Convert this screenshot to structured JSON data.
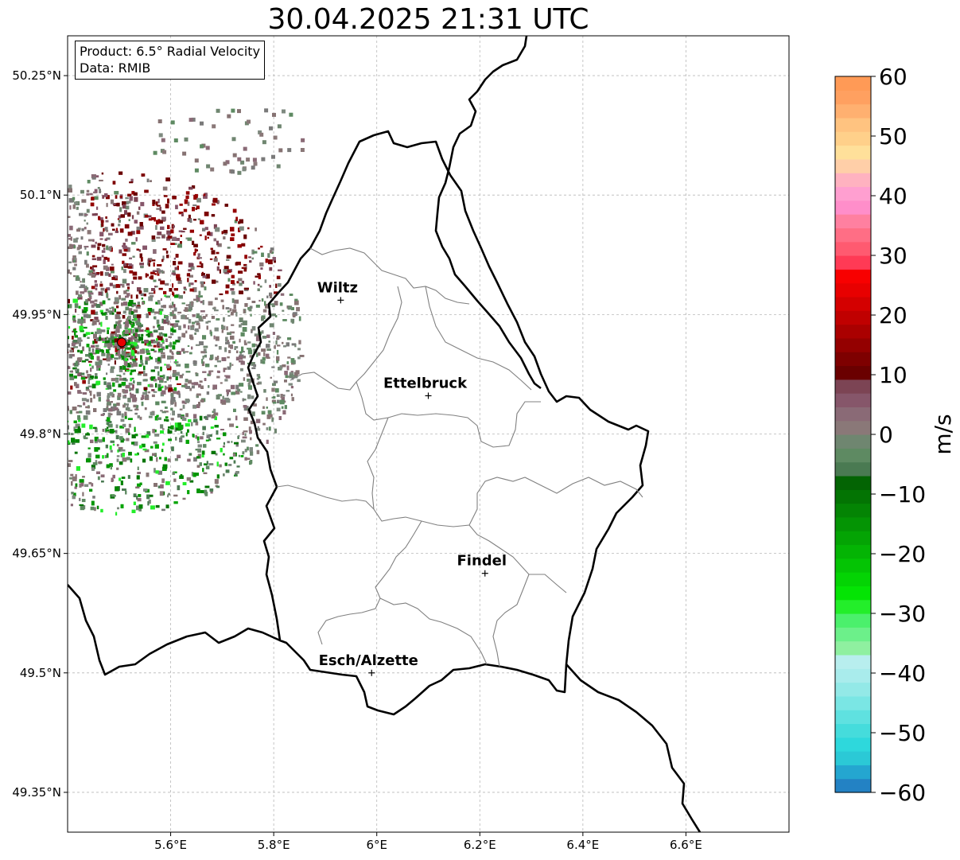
{
  "title": "30.04.2025 21:31 UTC",
  "info": {
    "product": "Product: 6.5° Radial Velocity",
    "data": "Data: RMIB"
  },
  "axes": {
    "lon_ticks": [
      {
        "value": 5.6,
        "label": "5.6°E"
      },
      {
        "value": 5.8,
        "label": "5.8°E"
      },
      {
        "value": 6.0,
        "label": "6°E"
      },
      {
        "value": 6.2,
        "label": "6.2°E"
      },
      {
        "value": 6.4,
        "label": "6.4°E"
      },
      {
        "value": 6.6,
        "label": "6.6°E"
      }
    ],
    "lat_ticks": [
      {
        "value": 50.25,
        "label": "50.25°N"
      },
      {
        "value": 50.1,
        "label": "50.1°N"
      },
      {
        "value": 49.95,
        "label": "49.95°N"
      },
      {
        "value": 49.8,
        "label": "49.8°N"
      },
      {
        "value": 49.65,
        "label": "49.65°N"
      },
      {
        "value": 49.5,
        "label": "49.5°N"
      },
      {
        "value": 49.35,
        "label": "49.35°N"
      }
    ],
    "lon_range": [
      5.4,
      6.8
    ],
    "lat_range": [
      49.3,
      50.3
    ]
  },
  "cities": [
    {
      "name": "Wiltz",
      "lon": 5.93,
      "lat": 49.968
    },
    {
      "name": "Ettelbruck",
      "lon": 6.1,
      "lat": 49.848
    },
    {
      "name": "Findel",
      "lon": 6.21,
      "lat": 49.625
    },
    {
      "name": "Esch/Alzette",
      "lon": 5.99,
      "lat": 49.5
    }
  ],
  "radar": {
    "lon": 5.505,
    "lat": 49.915
  },
  "colorbar": {
    "label": "m/s",
    "min": -60,
    "max": 60,
    "ticks": [
      {
        "value": 60,
        "label": "60"
      },
      {
        "value": 50,
        "label": "50"
      },
      {
        "value": 40,
        "label": "40"
      },
      {
        "value": 30,
        "label": "30"
      },
      {
        "value": 20,
        "label": "20"
      },
      {
        "value": 10,
        "label": "10"
      },
      {
        "value": 0,
        "label": "0"
      },
      {
        "value": -10,
        "label": "−10"
      },
      {
        "value": -20,
        "label": "−20"
      },
      {
        "value": -30,
        "label": "−30"
      },
      {
        "value": -40,
        "label": "−40"
      },
      {
        "value": -50,
        "label": "−50"
      },
      {
        "value": -60,
        "label": "−60"
      }
    ],
    "colors": [
      "#2382c4",
      "#24a6d0",
      "#2bc9d6",
      "#2ed8dc",
      "#45dcdc",
      "#5fe1e0",
      "#7ae6e4",
      "#93e9e7",
      "#a9ecec",
      "#b8eeee",
      "#8ff0a0",
      "#6cf08a",
      "#4bf06c",
      "#23ee2a",
      "#04e404",
      "#04d404",
      "#04c404",
      "#04b404",
      "#04a404",
      "#049404",
      "#048404",
      "#037403",
      "#036403",
      "#4a7a52",
      "#5e8a62",
      "#6f8670",
      "#8a7878",
      "#8a6a76",
      "#86566a",
      "#7c4454",
      "#6a0000",
      "#7e0000",
      "#940000",
      "#aa0000",
      "#c00000",
      "#d40000",
      "#e80000",
      "#f80000",
      "#ff3a55",
      "#ff5a70",
      "#ff6e85",
      "#ff80a0",
      "#ff8eca",
      "#ff9fd0",
      "#ffb2c0",
      "#ffcfa8",
      "#ffe09a",
      "#ffd08a",
      "#ffc380",
      "#ffb070",
      "#ffa060",
      "#ff9a56"
    ]
  }
}
